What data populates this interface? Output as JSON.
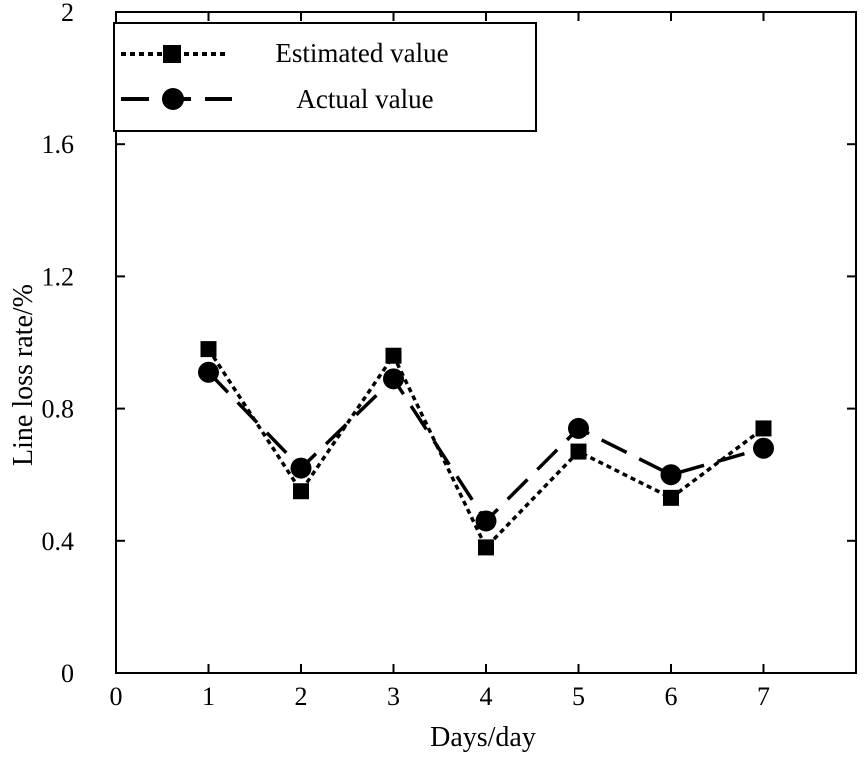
{
  "chart_data": {
    "type": "line",
    "title": "",
    "xlabel": "Days/day",
    "ylabel": "Line loss rate/%",
    "xlim": [
      0,
      8
    ],
    "ylim": [
      0,
      2
    ],
    "xticks": [
      0,
      1,
      2,
      3,
      4,
      5,
      6,
      7
    ],
    "yticks": [
      0,
      0.4,
      0.8,
      1.2,
      1.6,
      2
    ],
    "ytick_labels": [
      "0",
      "0.4",
      "0.8",
      "1.2",
      "1.6",
      "2"
    ],
    "x": [
      1,
      2,
      3,
      4,
      5,
      6,
      7
    ],
    "series": [
      {
        "name": "Estimated value",
        "marker": "square",
        "line_style": "dotted",
        "values": [
          0.98,
          0.55,
          0.96,
          0.38,
          0.67,
          0.53,
          0.74
        ]
      },
      {
        "name": "Actual value",
        "marker": "circle",
        "line_style": "dashed",
        "values": [
          0.91,
          0.62,
          0.89,
          0.46,
          0.74,
          0.6,
          0.68
        ]
      }
    ],
    "grid": false,
    "legend_position": "top-left",
    "color": "#000000"
  }
}
